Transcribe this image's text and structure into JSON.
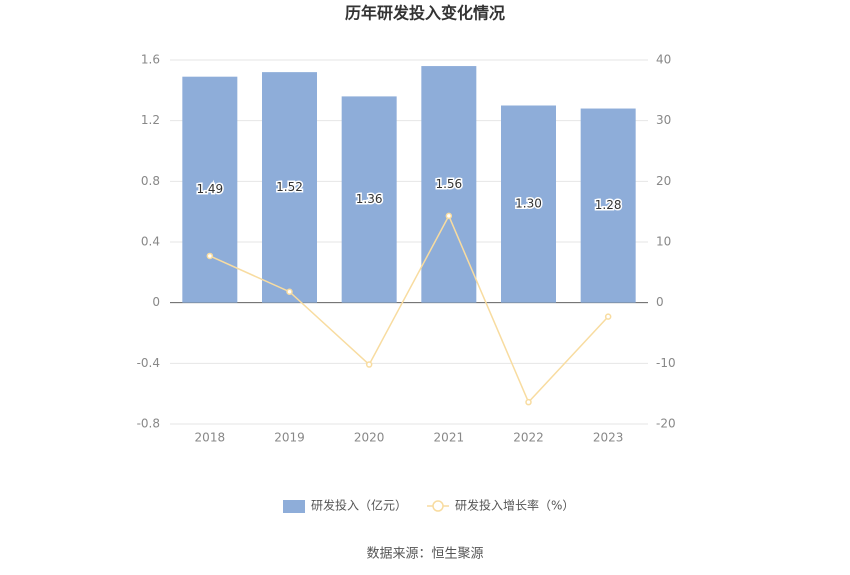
{
  "chart_data": {
    "type": "combo",
    "title": "历年研发投入变化情况",
    "categories": [
      "2018",
      "2019",
      "2020",
      "2021",
      "2022",
      "2023"
    ],
    "series": [
      {
        "name": "研发投入（亿元）",
        "type": "bar",
        "color": "#8eadd9",
        "values": [
          1.49,
          1.52,
          1.36,
          1.56,
          1.3,
          1.28
        ],
        "value_labels": [
          "1.49",
          "1.52",
          "1.36",
          "1.56",
          "1.30",
          "1.28"
        ]
      },
      {
        "name": "研发投入增长率（%）",
        "type": "line",
        "axis": "y2",
        "color": "#f8dca0",
        "values": [
          7.7,
          1.8,
          -10.2,
          14.3,
          -16.4,
          -2.3
        ]
      }
    ],
    "ylim": [
      -0.8,
      1.6
    ],
    "yticks": [
      -0.8,
      -0.4,
      0,
      0.4,
      0.8,
      1.2,
      1.6
    ],
    "y2lim": [
      -20,
      40
    ],
    "y2ticks": [
      -20,
      -10,
      0,
      10,
      20,
      30,
      40
    ],
    "grid": true,
    "legend": "bottom",
    "source": "数据来源：恒生聚源"
  }
}
